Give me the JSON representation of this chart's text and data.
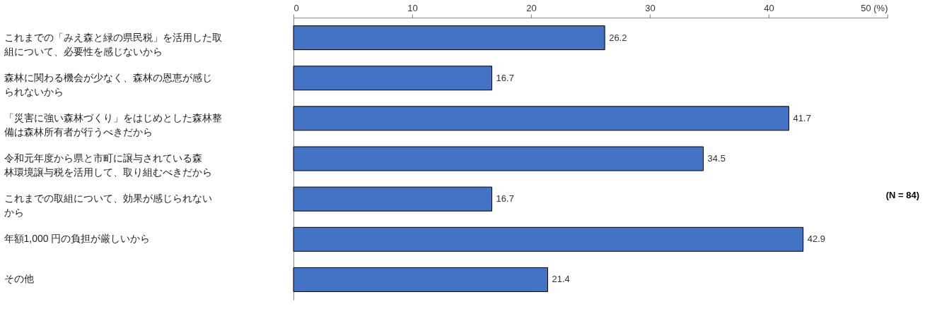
{
  "chart_data": {
    "type": "bar",
    "orientation": "horizontal",
    "categories": [
      "これまでの「みえ森と緑の県民税」を活用した取組について、必要性を感じないから",
      "森林に関わる機会が少なく、森林の恩恵が感じられないから",
      "「災害に強い森林づくり」をはじめとした森林整備は森林所有者が行うべきだから",
      "令和元年度から県と市町に譲与されている森林環境譲与税を活用して、取り組むべきだから",
      "これまでの取組について、効果が感じられないから",
      "年額1,000 円の負担が厳しいから",
      "その他"
    ],
    "values": [
      26.2,
      16.7,
      41.7,
      34.5,
      16.7,
      42.9,
      21.4
    ],
    "color": "#4472c4",
    "xlim": [
      0,
      50
    ],
    "xticks": [
      0,
      10,
      20,
      30,
      40,
      {
        "value": 50,
        "label": "50 (%)"
      }
    ],
    "data_labels": true,
    "grid": false,
    "annotations": [
      "(N = 84)"
    ]
  }
}
